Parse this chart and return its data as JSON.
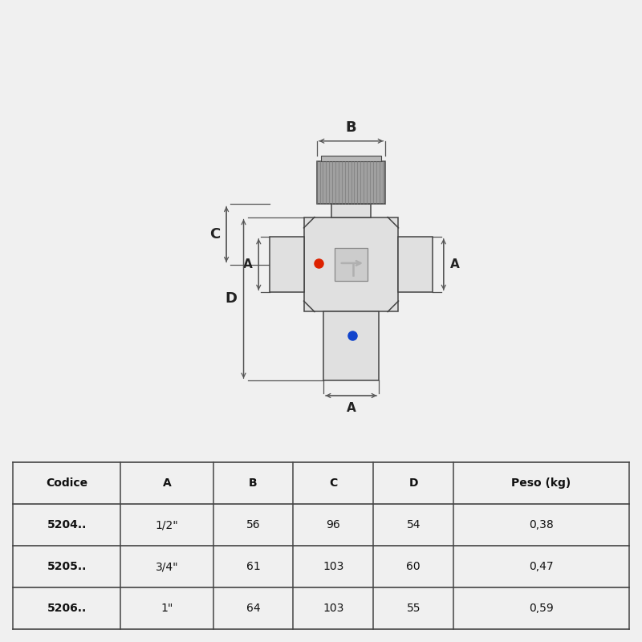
{
  "bg_color": "#f0f0f0",
  "diagram_bg": "#ffffff",
  "table_headers": [
    "Codice",
    "A",
    "B",
    "C",
    "D",
    "Peso (kg)"
  ],
  "table_rows": [
    [
      "5204..",
      "1/2\"",
      "56",
      "96",
      "54",
      "0,38"
    ],
    [
      "5205..",
      "3/4\"",
      "61",
      "103",
      "60",
      "0,47"
    ],
    [
      "5206..",
      "1\"",
      "64",
      "103",
      "55",
      "0,59"
    ]
  ],
  "body_color": "#e0e0e0",
  "knob_color": "#a0a0a0",
  "inner_box_color": "#cccccc",
  "arrow_color": "#b0b0b0",
  "red_dot": "#dd2200",
  "blue_dot": "#1144cc",
  "dim_line_color": "#555555",
  "border_color": "#444444",
  "line_color": "#555555"
}
